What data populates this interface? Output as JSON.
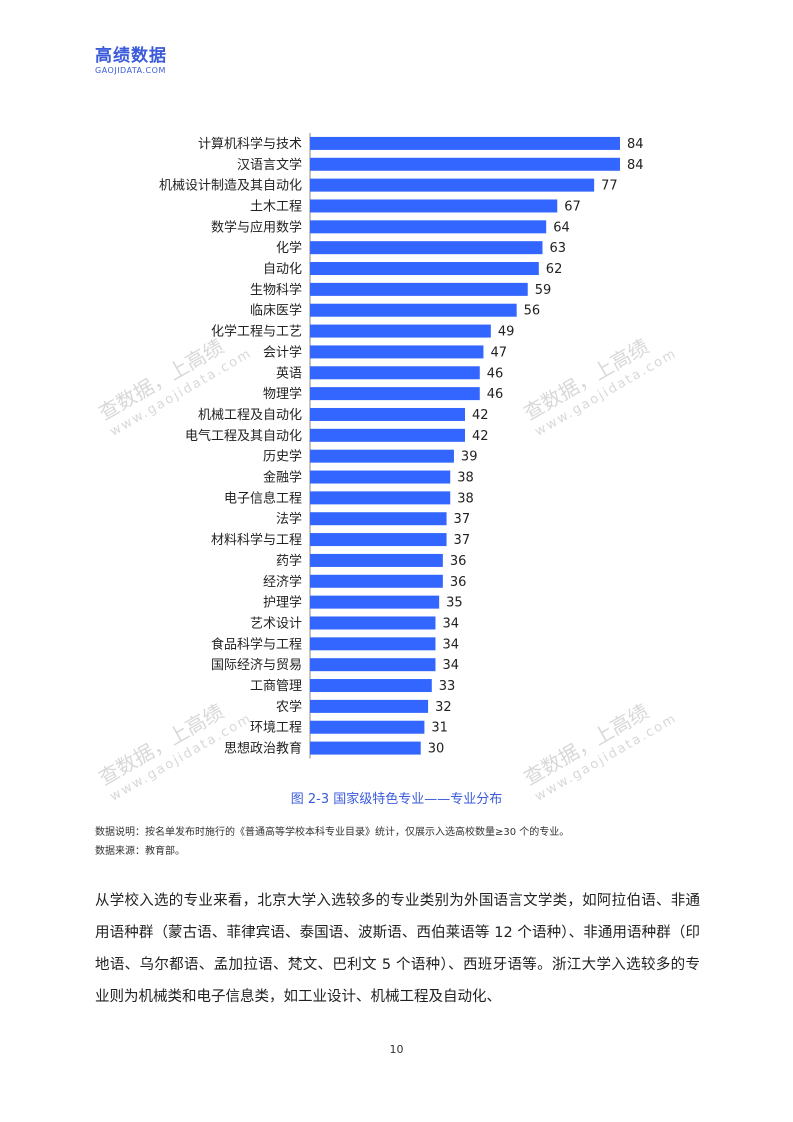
{
  "header": {
    "brand_name": "高绩数据",
    "brand_url": "GAOJIDATA.COM"
  },
  "watermark": {
    "text": "查数据，上高绩",
    "url": "www.gaojidata.com"
  },
  "chart_data": {
    "type": "bar",
    "orientation": "horizontal",
    "categories": [
      "计算机科学与技术",
      "汉语言文学",
      "机械设计制造及其自动化",
      "土木工程",
      "数学与应用数学",
      "化学",
      "自动化",
      "生物科学",
      "临床医学",
      "化学工程与工艺",
      "会计学",
      "英语",
      "物理学",
      "机械工程及自动化",
      "电气工程及其自动化",
      "历史学",
      "金融学",
      "电子信息工程",
      "法学",
      "材料科学与工程",
      "药学",
      "经济学",
      "护理学",
      "艺术设计",
      "食品科学与工程",
      "国际经济与贸易",
      "工商管理",
      "农学",
      "环境工程",
      "思想政治教育"
    ],
    "values": [
      84,
      84,
      77,
      67,
      64,
      63,
      62,
      59,
      56,
      49,
      47,
      46,
      46,
      42,
      42,
      39,
      38,
      38,
      37,
      37,
      36,
      36,
      35,
      34,
      34,
      34,
      33,
      32,
      31,
      30
    ],
    "xlim": [
      0,
      84
    ],
    "bar_color": "#3366ff",
    "grid": false,
    "legend": "none"
  },
  "figure": {
    "caption": "图 2-3 国家级特色专业——专业分布"
  },
  "notes": {
    "note1": "数据说明：按名单发布时施行的《普通高等学校本科专业目录》统计，仅展示入选高校数量≥30 个的专业。",
    "note2": "数据来源：教育部。"
  },
  "body": {
    "paragraph": "从学校入选的专业来看，北京大学入选较多的专业类别为外国语言文学类，如阿拉伯语、非通用语种群（蒙古语、菲律宾语、泰国语、波斯语、西伯莱语等 12 个语种）、非通用语种群（印地语、乌尔都语、孟加拉语、梵文、巴利文 5 个语种）、西班牙语等。浙江大学入选较多的专业则为机械类和电子信息类，如工业设计、机械工程及自动化、"
  },
  "footer": {
    "page_number": "10"
  }
}
